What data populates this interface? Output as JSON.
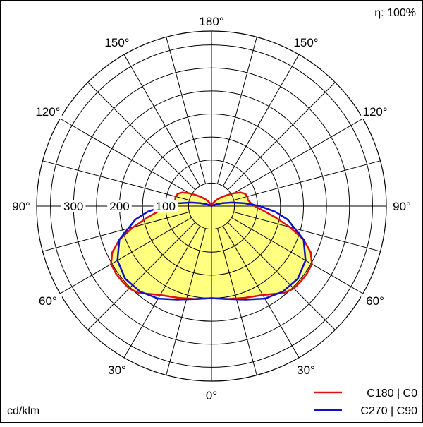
{
  "chart_data": {
    "type": "polar",
    "efficiency_label": "η: 100%",
    "unit_label": "cd/klm",
    "radial_max": 380,
    "radial_ticks": [
      100,
      200,
      300
    ],
    "angle_labels": [
      {
        "angle": 0,
        "text": "0°"
      },
      {
        "angle": 30,
        "text": "30°"
      },
      {
        "angle": 60,
        "text": "60°"
      },
      {
        "angle": 90,
        "text": "90°"
      },
      {
        "angle": 120,
        "text": "120°"
      },
      {
        "angle": 150,
        "text": "150°"
      },
      {
        "angle": 180,
        "text": "180°"
      }
    ],
    "legend": [
      {
        "label": "C180 | C0",
        "color": "#e01010"
      },
      {
        "label": "C270 | C90",
        "color": "#1010c8"
      }
    ],
    "fill_color": "#ffff80",
    "series": [
      {
        "name": "C180 | C0",
        "color": "#e01010",
        "angles": [
          0,
          10,
          20,
          30,
          40,
          45,
          50,
          55,
          60,
          65,
          70,
          75,
          80,
          85,
          90,
          95,
          100,
          105,
          110,
          115,
          120,
          125,
          130,
          135,
          140,
          145,
          150,
          155,
          160,
          165,
          170,
          175,
          180
        ],
        "values": [
          200,
          205,
          212,
          223,
          246,
          253,
          254,
          254,
          252,
          238,
          213,
          176,
          141,
          113,
          94,
          85,
          80,
          81,
          78,
          70,
          56,
          42,
          32,
          24,
          18,
          13,
          9,
          5,
          2,
          0,
          0,
          0,
          0
        ]
      },
      {
        "name": "C270 | C90",
        "color": "#1010c8",
        "angles": [
          0,
          10,
          20,
          30,
          40,
          50,
          60,
          70,
          80,
          85,
          90,
          95,
          100,
          105,
          110,
          115,
          120,
          130,
          140,
          150,
          160,
          170,
          180
        ],
        "values": [
          200,
          205,
          216,
          232,
          242,
          245,
          236,
          213,
          168,
          139,
          105,
          72,
          45,
          25,
          12,
          5,
          1,
          0,
          0,
          0,
          0,
          0,
          0
        ]
      }
    ]
  }
}
